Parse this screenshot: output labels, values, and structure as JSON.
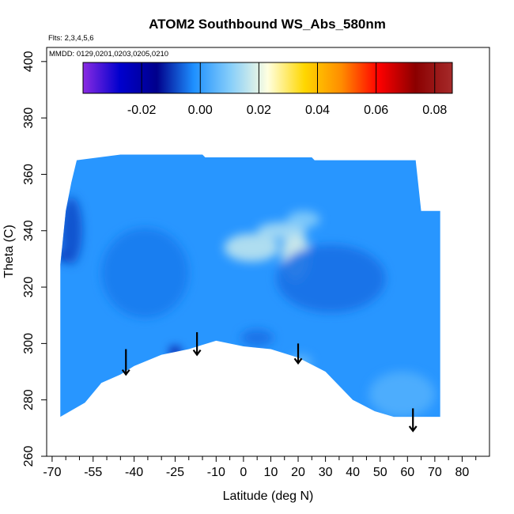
{
  "chart_data": {
    "type": "heatmap",
    "title": "ATOM2 Southbound WS_Abs_580nm",
    "flights_label": "Flts: 2,3,4,5,6",
    "dates_label": "MMDD: 0129,0201,0203,0205,0210",
    "xlabel": "Latitude (deg N)",
    "ylabel": "Theta (C)",
    "xlim": [
      -72,
      90
    ],
    "ylim": [
      260,
      405
    ],
    "x_ticks": [
      -70,
      -55,
      -40,
      -25,
      -10,
      0,
      10,
      20,
      30,
      40,
      50,
      60,
      70,
      80
    ],
    "x_minor_ticks": [
      -65,
      -60,
      -50,
      -45,
      -35,
      -30,
      -20,
      -15,
      -5,
      5,
      15,
      25,
      35,
      45,
      55,
      65,
      75,
      85
    ],
    "y_ticks": [
      260,
      280,
      300,
      320,
      340,
      360,
      380,
      400
    ],
    "colorbar": {
      "range": [
        -0.04,
        0.086
      ],
      "ticks": [
        -0.02,
        0.0,
        0.02,
        0.04,
        0.06,
        0.08
      ],
      "tick_labels": [
        "-0.02",
        "0.00",
        "0.02",
        "0.04",
        "0.06",
        "0.08"
      ],
      "colors": [
        "#8a2be2",
        "#0000cd",
        "#00008b",
        "#1e90ff",
        "#87cefa",
        "#ffffe0",
        "#ffd700",
        "#ff8c00",
        "#ff0000",
        "#8b0000",
        "#a52a2a"
      ]
    },
    "field": {
      "background_value": -0.001,
      "lat_range": [
        -68,
        72
      ],
      "boundary_top": [
        [
          -67,
          328
        ],
        [
          -65,
          347
        ],
        [
          -63,
          357
        ],
        [
          -61,
          365
        ],
        [
          -45,
          367
        ],
        [
          -15,
          367
        ],
        [
          -14,
          366
        ],
        [
          25,
          366
        ],
        [
          26,
          365
        ],
        [
          63,
          365
        ],
        [
          65,
          347
        ],
        [
          72,
          347
        ]
      ],
      "boundary_bottom": [
        [
          -67,
          274
        ],
        [
          -58,
          279
        ],
        [
          -52,
          286
        ],
        [
          -45,
          289
        ],
        [
          -40,
          292
        ],
        [
          -30,
          296
        ],
        [
          -20,
          298
        ],
        [
          -10,
          301
        ],
        [
          0,
          299
        ],
        [
          10,
          298
        ],
        [
          20,
          295
        ],
        [
          30,
          290
        ],
        [
          40,
          280
        ],
        [
          48,
          276
        ],
        [
          55,
          274
        ],
        [
          72,
          274
        ]
      ],
      "features": [
        {
          "lat": 3,
          "theta": 334,
          "value": 0.016,
          "spread_lat": 10,
          "spread_theta": 5
        },
        {
          "lat": 19,
          "theta": 331,
          "value": 0.019,
          "spread_lat": 5,
          "spread_theta": 9
        },
        {
          "lat": 14,
          "theta": 340,
          "value": 0.014,
          "spread_lat": 9,
          "spread_theta": 3
        },
        {
          "lat": 22,
          "theta": 344,
          "value": 0.01,
          "spread_lat": 6,
          "spread_theta": 3
        },
        {
          "lat": 32,
          "theta": 323,
          "value": -0.005,
          "spread_lat": 20,
          "spread_theta": 12
        },
        {
          "lat": -66,
          "theta": 331,
          "value": -0.02,
          "spread_lat": 2,
          "spread_theta": 2
        },
        {
          "lat": -63,
          "theta": 340,
          "value": -0.008,
          "spread_lat": 4,
          "spread_theta": 12
        },
        {
          "lat": -36,
          "theta": 325,
          "value": -0.004,
          "spread_lat": 16,
          "spread_theta": 16
        },
        {
          "lat": -25,
          "theta": 297,
          "value": -0.016,
          "spread_lat": 2,
          "spread_theta": 2
        },
        {
          "lat": 5,
          "theta": 302,
          "value": -0.005,
          "spread_lat": 6,
          "spread_theta": 3
        },
        {
          "lat": 58,
          "theta": 282,
          "value": 0.004,
          "spread_lat": 12,
          "spread_theta": 8
        },
        {
          "lat": 21,
          "theta": 293,
          "value": 0.006,
          "spread_lat": 4,
          "spread_theta": 3
        }
      ]
    },
    "arrows": [
      {
        "lat": -43,
        "theta_top": 298,
        "theta_tip": 289
      },
      {
        "lat": -17,
        "theta_top": 304,
        "theta_tip": 296
      },
      {
        "lat": 20,
        "theta_top": 300,
        "theta_tip": 293
      },
      {
        "lat": 62,
        "theta_top": 277,
        "theta_tip": 269
      }
    ]
  }
}
